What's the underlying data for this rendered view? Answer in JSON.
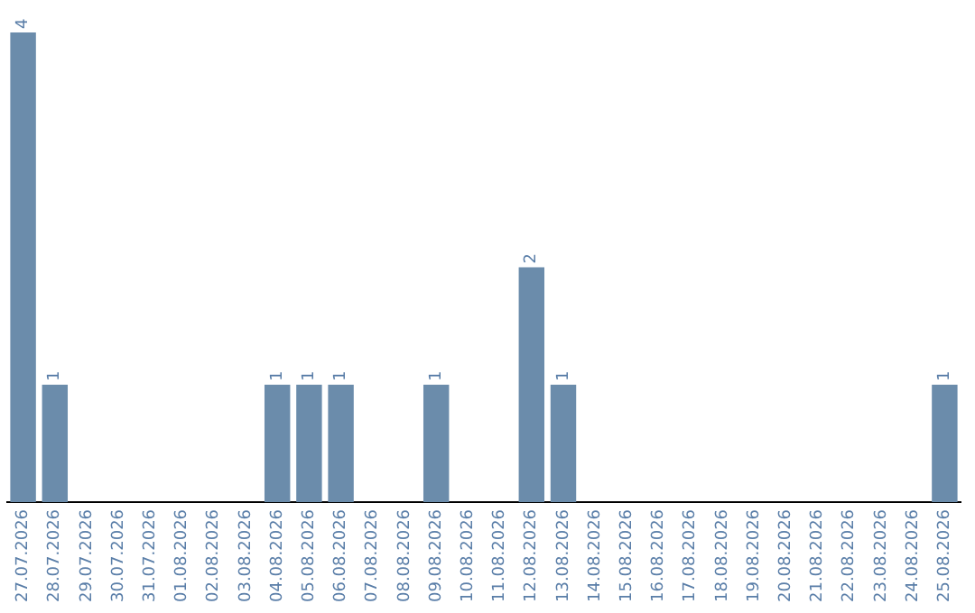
{
  "chart_data": {
    "type": "bar",
    "categories": [
      "27.07.2026",
      "28.07.2026",
      "29.07.2026",
      "30.07.2026",
      "31.07.2026",
      "01.08.2026",
      "02.08.2026",
      "03.08.2026",
      "04.08.2026",
      "05.08.2026",
      "06.08.2026",
      "07.08.2026",
      "08.08.2026",
      "09.08.2026",
      "10.08.2026",
      "11.08.2026",
      "12.08.2026",
      "13.08.2026",
      "14.08.2026",
      "15.08.2026",
      "16.08.2026",
      "17.08.2026",
      "18.08.2026",
      "19.08.2026",
      "20.08.2026",
      "21.08.2026",
      "22.08.2026",
      "23.08.2026",
      "24.08.2026",
      "25.08.2026"
    ],
    "values": [
      4,
      1,
      0,
      0,
      0,
      0,
      0,
      0,
      1,
      1,
      1,
      0,
      0,
      1,
      0,
      0,
      2,
      1,
      0,
      0,
      0,
      0,
      0,
      0,
      0,
      0,
      0,
      0,
      0,
      1
    ],
    "value_labels": [
      "4",
      "1",
      null,
      null,
      null,
      null,
      null,
      null,
      "1",
      "1",
      "1",
      null,
      null,
      "1",
      null,
      null,
      "2",
      "1",
      null,
      null,
      null,
      null,
      null,
      null,
      null,
      null,
      null,
      null,
      null,
      "1"
    ],
    "color": "#6b8cab",
    "ylim": [
      0,
      4
    ],
    "tick_labels": "x",
    "grid": false,
    "legend": false
  }
}
